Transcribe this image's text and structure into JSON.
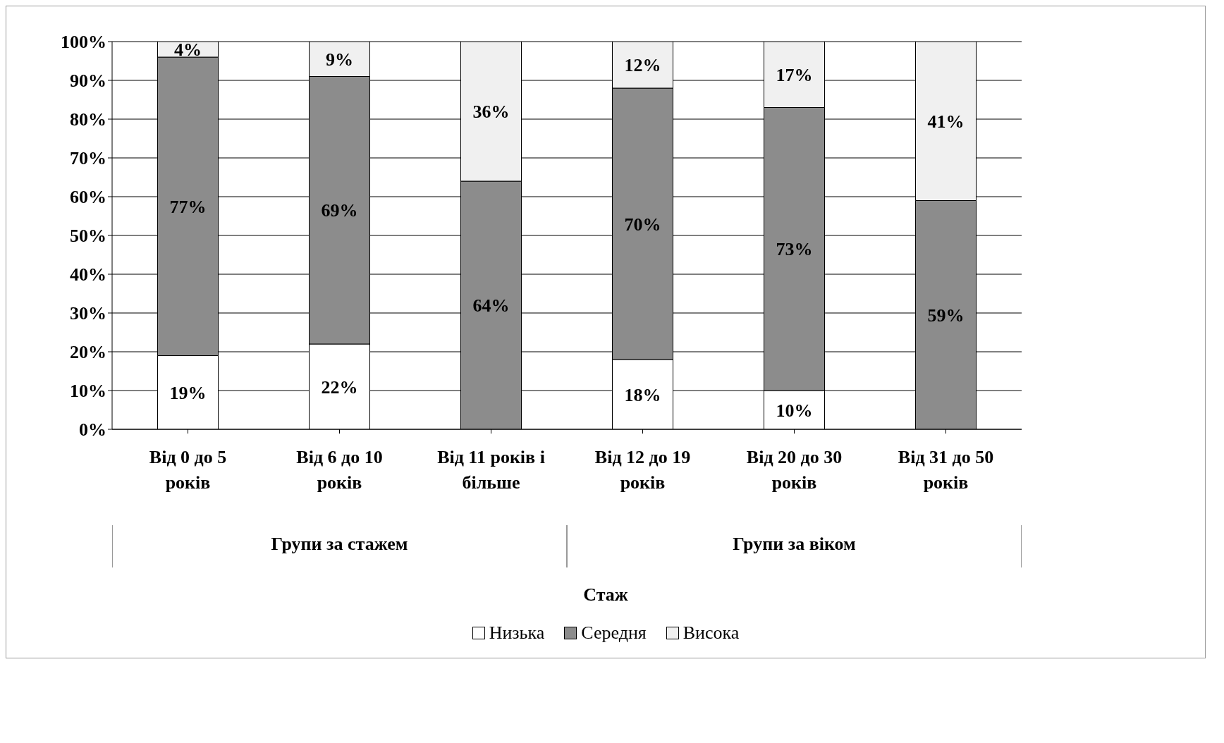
{
  "chart_data": {
    "type": "bar",
    "stacked": true,
    "xlabel": "Стаж",
    "categories": [
      "Від 0 до 5 років",
      "Від 6 до 10 років",
      "Від 11 років і більше",
      "Від 12 до 19 років",
      "Від 20 до 30 років",
      "Від 31 до 50 років"
    ],
    "series": [
      {
        "name": "Низька",
        "color": "#ffffff",
        "values": [
          19,
          22,
          0,
          18,
          10,
          0
        ],
        "value_labels": [
          "19%",
          "22%",
          null,
          "18%",
          "10%",
          null
        ]
      },
      {
        "name": "Середня",
        "color": "#8c8c8c",
        "values": [
          77,
          69,
          64,
          70,
          73,
          59
        ],
        "value_labels": [
          "77%",
          "69%",
          "64%",
          "70%",
          "73%",
          "59%"
        ]
      },
      {
        "name": "Висока",
        "color": "#f0f0f0",
        "values": [
          4,
          9,
          36,
          12,
          17,
          41
        ],
        "value_labels": [
          "4%",
          "9%",
          "36%",
          "12%",
          "17%",
          "41%"
        ]
      }
    ],
    "ylim": [
      0,
      100
    ],
    "yticks": [
      {
        "value": 0,
        "label": "0%"
      },
      {
        "value": 10,
        "label": "10%"
      },
      {
        "value": 20,
        "label": "20%"
      },
      {
        "value": 30,
        "label": "30%"
      },
      {
        "value": 40,
        "label": "40%"
      },
      {
        "value": 50,
        "label": "50%"
      },
      {
        "value": 60,
        "label": "60%"
      },
      {
        "value": 70,
        "label": "70%"
      },
      {
        "value": 80,
        "label": "80%"
      },
      {
        "value": 90,
        "label": "90%"
      },
      {
        "value": 100,
        "label": "100%"
      }
    ],
    "grid": "y",
    "legend": "bottom",
    "annotations": [
      "Групи за стажем",
      "Групи за віком"
    ]
  }
}
